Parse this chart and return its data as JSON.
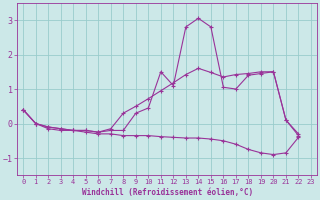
{
  "xlabel": "Windchill (Refroidissement éolien,°C)",
  "background_color": "#cce8e8",
  "grid_color": "#99cccc",
  "line_color": "#993399",
  "xlim": [
    -0.5,
    23.5
  ],
  "ylim": [
    -1.5,
    3.5
  ],
  "xticks": [
    0,
    1,
    2,
    3,
    4,
    5,
    6,
    7,
    8,
    9,
    10,
    11,
    12,
    13,
    14,
    15,
    16,
    17,
    18,
    19,
    20,
    21,
    22,
    23
  ],
  "yticks": [
    -1,
    0,
    1,
    2,
    3
  ],
  "series": [
    {
      "x": [
        0,
        1,
        2,
        3,
        4,
        5,
        6,
        7,
        8,
        9,
        10,
        11,
        12,
        13,
        14,
        15,
        16,
        17,
        18,
        19,
        20,
        21,
        22
      ],
      "y": [
        0.4,
        0.0,
        -0.1,
        -0.15,
        -0.2,
        -0.2,
        -0.25,
        -0.2,
        -0.2,
        0.3,
        0.45,
        1.5,
        1.1,
        2.8,
        3.05,
        2.8,
        1.05,
        1.0,
        1.4,
        1.45,
        1.5,
        0.1,
        -0.35
      ]
    },
    {
      "x": [
        0,
        1,
        2,
        3,
        4,
        5,
        6,
        7,
        8,
        9,
        10,
        11,
        12,
        13,
        14,
        15,
        16,
        17,
        18,
        19,
        20,
        21,
        22
      ],
      "y": [
        0.4,
        0.0,
        -0.15,
        -0.2,
        -0.2,
        -0.25,
        -0.3,
        -0.3,
        -0.35,
        -0.35,
        -0.35,
        -0.38,
        -0.4,
        -0.42,
        -0.42,
        -0.45,
        -0.5,
        -0.6,
        -0.75,
        -0.85,
        -0.9,
        -0.85,
        -0.4
      ]
    },
    {
      "x": [
        0,
        1,
        2,
        3,
        4,
        5,
        6,
        7,
        8,
        9,
        10,
        11,
        12,
        13,
        14,
        15,
        16,
        17,
        18,
        19,
        20,
        21,
        22
      ],
      "y": [
        0.4,
        0.0,
        -0.1,
        -0.15,
        -0.2,
        -0.2,
        -0.25,
        -0.15,
        0.3,
        0.5,
        0.72,
        0.95,
        1.18,
        1.42,
        1.6,
        1.48,
        1.35,
        1.42,
        1.45,
        1.5,
        1.5,
        0.1,
        -0.3
      ]
    }
  ]
}
